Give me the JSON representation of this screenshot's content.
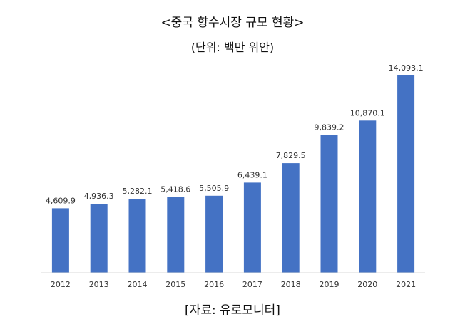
{
  "chart_data": {
    "type": "bar",
    "title": "<중국 향수시장 규모 현황>",
    "subtitle": "(단위: 백만 위안)",
    "source": "[자료: 유로모니터]",
    "categories": [
      "2012",
      "2013",
      "2014",
      "2015",
      "2016",
      "2017",
      "2018",
      "2019",
      "2020",
      "2021"
    ],
    "values": [
      4609.9,
      4936.3,
      5282.1,
      5418.6,
      5505.9,
      6439.1,
      7829.5,
      9839.2,
      10870.1,
      14093.1
    ],
    "data_labels": [
      "4,609.9",
      "4,936.3",
      "5,282.1",
      "5,418.6",
      "5,505.9",
      "6,439.1",
      "7,829.5",
      "9,839.2",
      "10,870.1",
      "14,093.1"
    ],
    "xlabel": "",
    "ylabel": "",
    "ylim": [
      0,
      14093.1
    ],
    "grid": false,
    "legend": "none",
    "bar_color": "#4472C4",
    "axis_color": "#d9d9d9"
  }
}
